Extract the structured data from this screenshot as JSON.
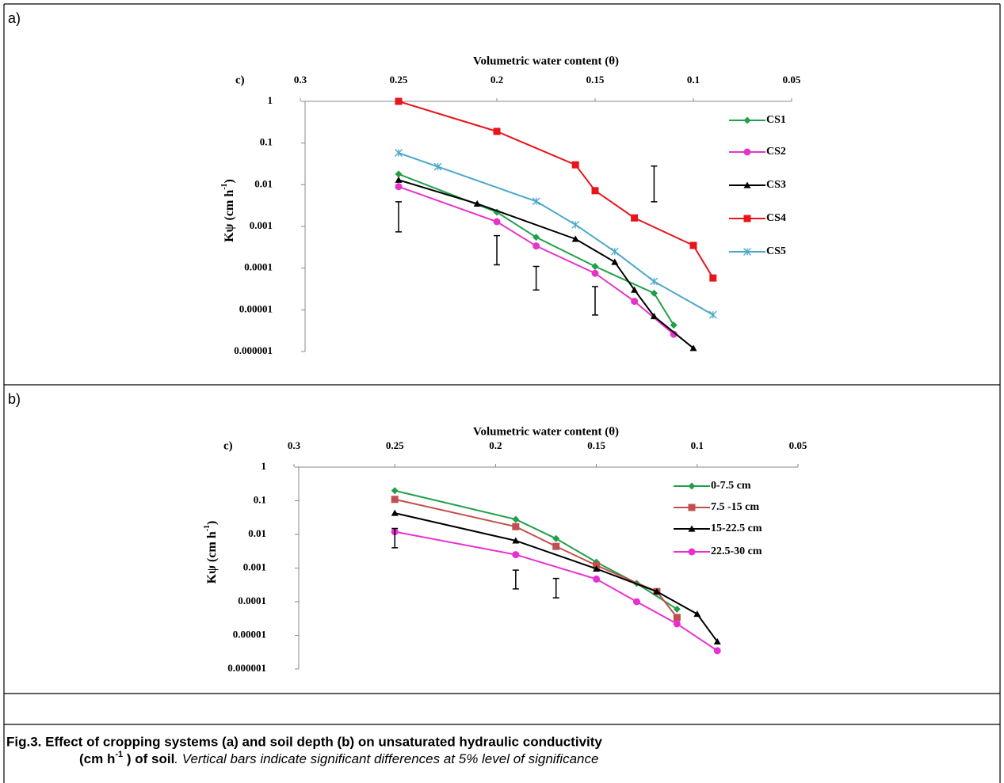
{
  "panels": [
    "a)",
    "b)"
  ],
  "chart_data": [
    {
      "type": "line",
      "tag": "c)",
      "xlabel": "Volumetric water content (θ)",
      "ylabel": [
        "Kψ (cm h",
        "-1",
        ")"
      ],
      "xlim": [
        0.3,
        0.05
      ],
      "xticks": [
        0.3,
        0.25,
        0.2,
        0.15,
        0.1,
        0.05
      ],
      "ylim": [
        1e-06,
        1
      ],
      "yticks": [
        1,
        0.1,
        0.01,
        0.001,
        0.0001,
        1e-05,
        1e-06
      ],
      "log_y": true,
      "grid": false,
      "legend": "right",
      "series": [
        {
          "name": "CS1",
          "color": "#1fa04a",
          "marker": "diamond",
          "x": [
            0.25,
            0.2,
            0.18,
            0.15,
            0.12,
            0.11
          ],
          "values": [
            0.018,
            0.0022,
            0.00055,
            0.00011,
            2.5e-05,
            4.3e-06
          ]
        },
        {
          "name": "CS2",
          "color": "#e535c8",
          "marker": "circle",
          "x": [
            0.25,
            0.2,
            0.18,
            0.15,
            0.13,
            0.11
          ],
          "values": [
            0.009,
            0.0013,
            0.00034,
            7.5e-05,
            1.6e-05,
            2.6e-06
          ]
        },
        {
          "name": "CS3",
          "color": "#000000",
          "marker": "triangle",
          "x": [
            0.25,
            0.21,
            0.16,
            0.14,
            0.13,
            0.12,
            0.1
          ],
          "values": [
            0.013,
            0.0035,
            0.0005,
            0.00014,
            3e-05,
            7e-06,
            1.2e-06
          ]
        },
        {
          "name": "CS4",
          "color": "#e8141b",
          "marker": "square",
          "x": [
            0.25,
            0.2,
            0.16,
            0.15,
            0.13,
            0.1,
            0.09
          ],
          "values": [
            1,
            0.19,
            0.03,
            0.0072,
            0.0016,
            0.00035,
            5.8e-05
          ]
        },
        {
          "name": "CS5",
          "color": "#4aa8c8",
          "marker": "star",
          "x": [
            0.25,
            0.23,
            0.18,
            0.16,
            0.14,
            0.12,
            0.09
          ],
          "values": [
            0.058,
            0.027,
            0.004,
            0.0011,
            0.00025,
            4.8e-05,
            7.6e-06
          ]
        }
      ],
      "error_bars": {
        "x": [
          0.25,
          0.2,
          0.18,
          0.15,
          0.12
        ],
        "low": [
          0.00074,
          0.00012,
          3e-05,
          7.5e-06,
          0.0039
        ],
        "high": [
          0.0039,
          0.0006,
          0.00011,
          3.6e-05,
          0.028
        ]
      }
    },
    {
      "type": "line",
      "tag": "c)",
      "xlabel": "Volumetric water content (θ)",
      "ylabel": [
        "Kψ (cm h",
        "-1",
        ")"
      ],
      "xlim": [
        0.3,
        0.05
      ],
      "xticks": [
        0.3,
        0.25,
        0.2,
        0.15,
        0.1,
        0.05
      ],
      "ylim": [
        1e-06,
        1
      ],
      "yticks": [
        1,
        0.1,
        0.01,
        0.001,
        0.0001,
        1e-05,
        1e-06
      ],
      "log_y": true,
      "grid": false,
      "legend": "right",
      "series": [
        {
          "name": "0-7.5 cm",
          "color": "#1fa04a",
          "marker": "diamond",
          "x": [
            0.25,
            0.19,
            0.17,
            0.15,
            0.13,
            0.11
          ],
          "values": [
            0.2,
            0.028,
            0.0075,
            0.0015,
            0.00035,
            6e-05
          ]
        },
        {
          "name": "7.5 -15 cm",
          "color": "#c0504d",
          "marker": "square",
          "x": [
            0.25,
            0.19,
            0.17,
            0.15,
            0.12,
            0.11
          ],
          "values": [
            0.11,
            0.017,
            0.0044,
            0.0012,
            0.0002,
            3.4e-05
          ]
        },
        {
          "name": "15-22.5 cm",
          "color": "#000000",
          "marker": "triangle",
          "x": [
            0.25,
            0.19,
            0.15,
            0.12,
            0.1,
            0.09
          ],
          "values": [
            0.043,
            0.0065,
            0.00095,
            0.0002,
            4.3e-05,
            6.5e-06
          ]
        },
        {
          "name": "22.5-30 cm",
          "color": "#ea2fd2",
          "marker": "circle",
          "x": [
            0.25,
            0.19,
            0.15,
            0.13,
            0.11,
            0.09
          ],
          "values": [
            0.012,
            0.0025,
            0.00047,
            0.0001,
            2.2e-05,
            3.5e-06
          ]
        }
      ],
      "error_bars": {
        "x": [
          0.25,
          0.19,
          0.17
        ],
        "low": [
          0.004,
          0.00024,
          0.00013
        ],
        "high": [
          0.015,
          0.00087,
          0.00049
        ]
      }
    }
  ],
  "caption": {
    "line1": "Fig.3. Effect of cropping systems (a) and soil depth (b) on unsaturated hydraulic conductivity",
    "line2": "(cm h",
    "sup": "-1",
    "line2_end": " ) of soil",
    "note": ". Vertical bars indicate significant differences at 5% level of significance"
  }
}
